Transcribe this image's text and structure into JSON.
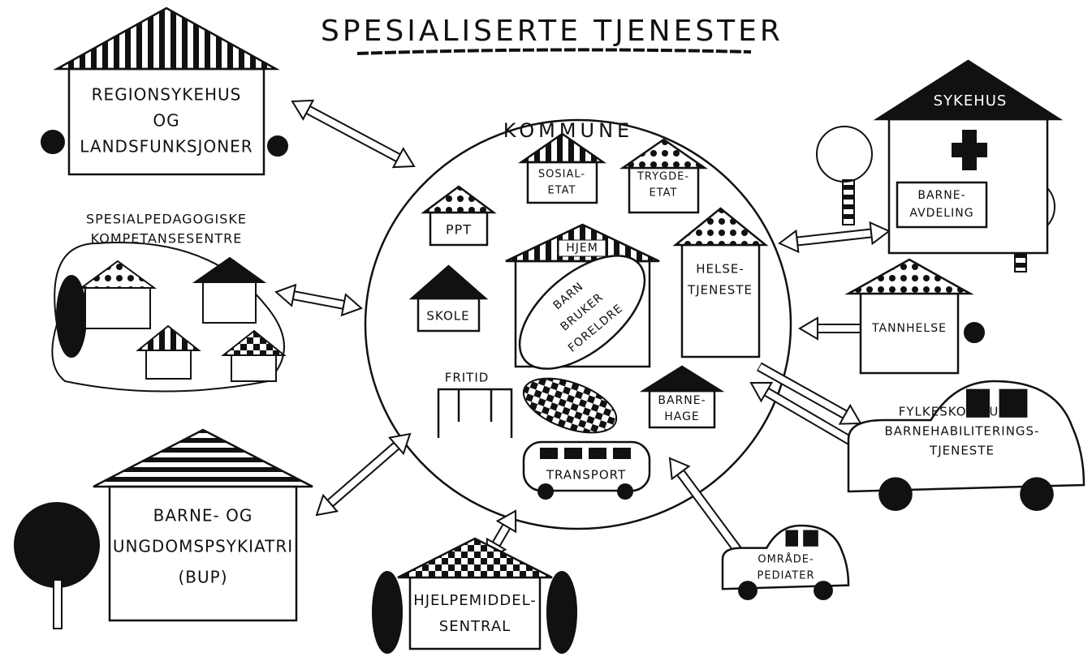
{
  "title": "SPESIALISERTE TJENESTER",
  "nodes": [
    {
      "lines": [
        "REGIONSYKEHUS",
        "OG",
        "LANDSFUNKSJONER"
      ]
    },
    {
      "lines": [
        "SPESIALPEDAGOGISKE",
        "KOMPETANSESENTRE"
      ]
    },
    {
      "lines": [
        "BARNE- OG",
        "UNGDOMSPSYKIATRI",
        "(BUP)"
      ]
    },
    {
      "lines": [
        "HJELPEMIDDEL-",
        "SENTRAL"
      ]
    },
    {
      "lines": [
        "KOMMUNE"
      ]
    },
    {
      "lines": [
        "SOSIAL-",
        "ETAT"
      ]
    },
    {
      "lines": [
        "TRYGDE-",
        "ETAT"
      ]
    },
    {
      "lines": [
        "PPT"
      ]
    },
    {
      "lines": [
        "HJEM"
      ]
    },
    {
      "lines": [
        "BARN",
        "BRUKER",
        "FORELDRE"
      ]
    },
    {
      "lines": [
        "SKOLE"
      ]
    },
    {
      "lines": [
        "FRITID"
      ]
    },
    {
      "lines": [
        "HELSE-",
        "TJENESTE"
      ]
    },
    {
      "lines": [
        "BARNE-",
        "HAGE"
      ]
    },
    {
      "lines": [
        "TRANSPORT"
      ]
    },
    {
      "lines": [
        "SYKEHUS"
      ]
    },
    {
      "lines": [
        "BARNE-",
        "AVDELING"
      ]
    },
    {
      "lines": [
        "TANNHELSE"
      ]
    },
    {
      "lines": [
        "FYLKESKOMMUNAL",
        "BARNEHABILITERINGS-",
        "TJENESTE"
      ]
    },
    {
      "lines": [
        "OMRÅDE-",
        "PEDIATER"
      ]
    }
  ]
}
